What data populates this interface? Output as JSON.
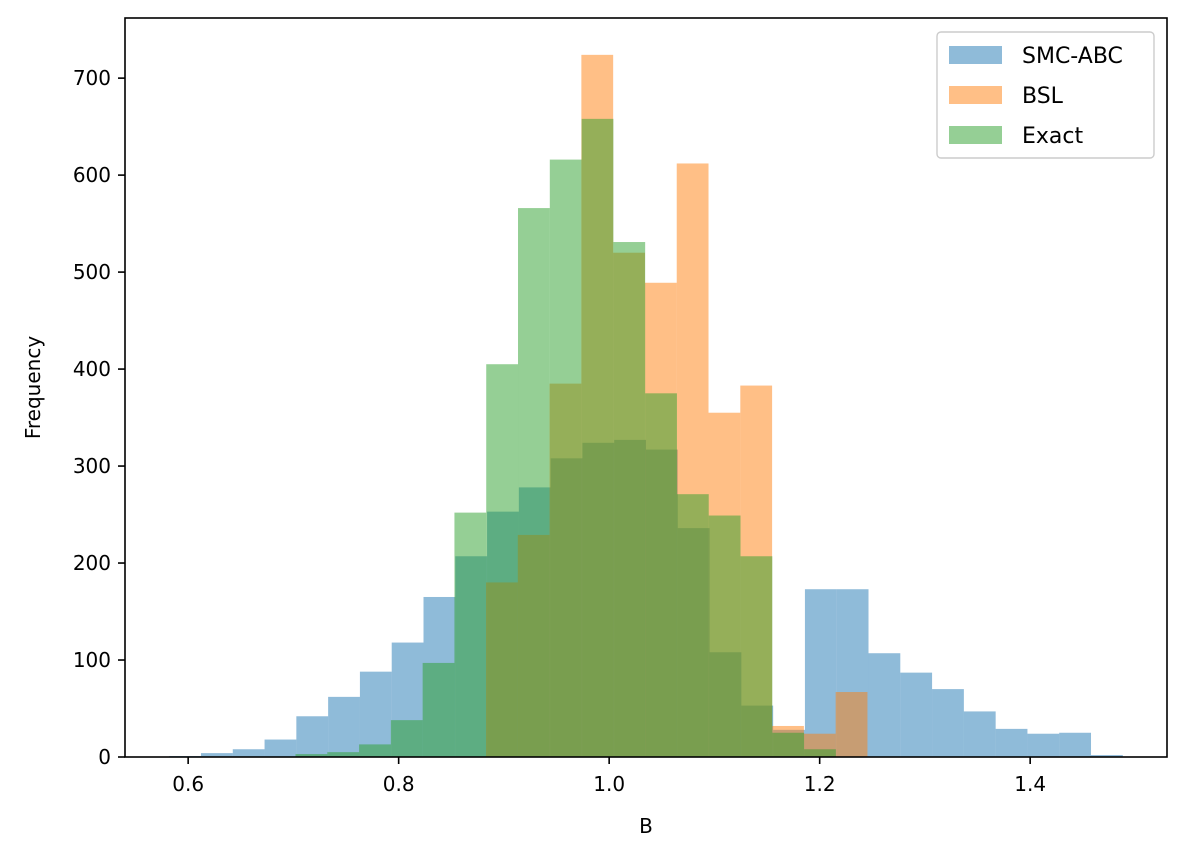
{
  "chart_data": {
    "type": "bar",
    "subtype": "histogram",
    "title": "",
    "xlabel": "B",
    "ylabel": "Frequency",
    "xlim": [
      0.54,
      1.53
    ],
    "ylim": [
      0,
      762
    ],
    "xticks": [
      0.6,
      0.8,
      1.0,
      1.2,
      1.4
    ],
    "xtick_labels": [
      "0.6",
      "0.8",
      "1.0",
      "1.2",
      "1.4"
    ],
    "yticks": [
      0,
      100,
      200,
      300,
      400,
      500,
      600,
      700
    ],
    "ytick_labels": [
      "0",
      "100",
      "200",
      "300",
      "400",
      "500",
      "600",
      "700"
    ],
    "grid": false,
    "legend_position": "top-right",
    "overlay_alpha": 0.5,
    "series": [
      {
        "name": "SMC-ABC",
        "color": "#1f77b4",
        "bin_start": 0.582,
        "bin_width": 0.0302,
        "values": [
          1,
          4,
          8,
          18,
          42,
          62,
          88,
          118,
          165,
          207,
          253,
          278,
          308,
          324,
          327,
          317,
          236,
          108,
          53,
          28,
          173,
          173,
          107,
          87,
          70,
          47,
          29,
          24,
          25,
          2
        ]
      },
      {
        "name": "BSL",
        "color": "#ff7f0e",
        "bin_start": 0.883,
        "bin_width": 0.0302,
        "values": [
          180,
          229,
          385,
          724,
          520,
          489,
          612,
          355,
          383,
          32,
          24,
          67
        ]
      },
      {
        "name": "Exact",
        "color": "#2ca02c",
        "bin_start": 0.702,
        "bin_width": 0.0302,
        "values": [
          3,
          5,
          13,
          38,
          97,
          252,
          405,
          566,
          616,
          658,
          531,
          375,
          271,
          249,
          207,
          25,
          8
        ]
      }
    ]
  }
}
